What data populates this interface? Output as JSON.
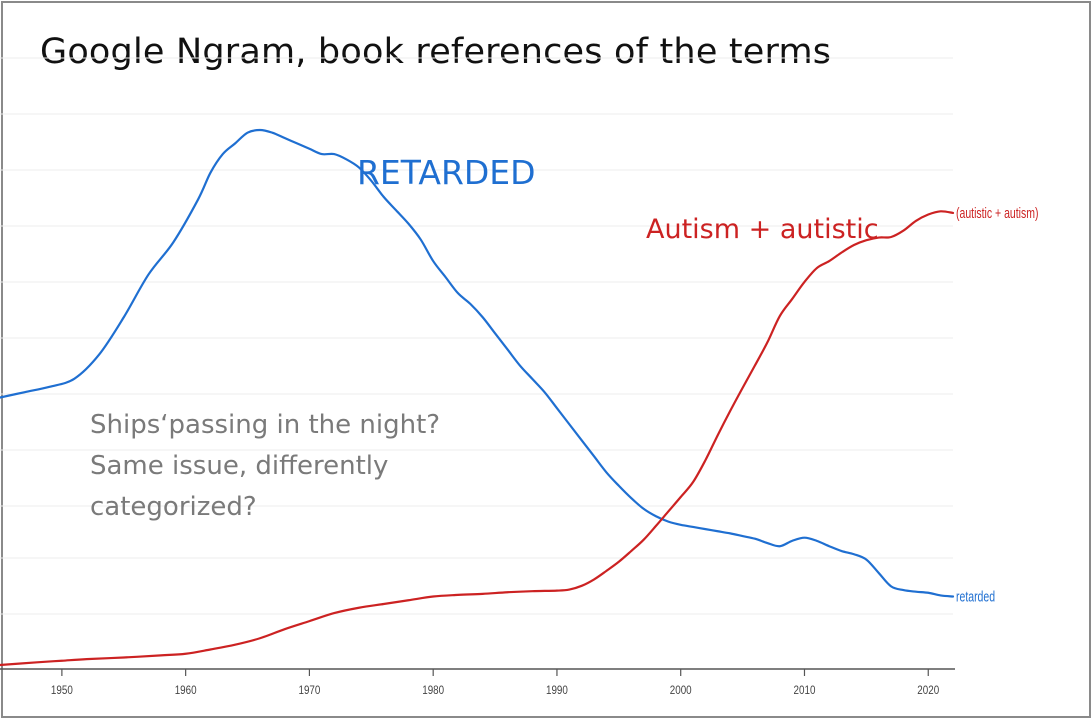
{
  "title": "Google Ngram, book references of the terms",
  "annotations": {
    "retarded_big": "RETARDED",
    "autism_big": "Autism + autistic",
    "question_lines": [
      "Ships‘passing in the night?",
      "Same issue, differently",
      "categorized?"
    ]
  },
  "colors": {
    "retarded": "#1f6fd1",
    "autism": "#cc2222",
    "grid": "#ececec",
    "axis": "#555555",
    "question_text": "#7a7a7a"
  },
  "chart_data": {
    "type": "line",
    "xlim": [
      1945,
      2022
    ],
    "ylim": [
      0,
      1
    ],
    "x_ticks": [
      1950,
      1960,
      1970,
      1980,
      1990,
      2000,
      2010,
      2020
    ],
    "y_tick_labels": [],
    "grid": true,
    "series": [
      {
        "name": "retarded",
        "end_label": "retarded",
        "color": "#1f6fd1",
        "points": [
          [
            1945,
            0.5
          ],
          [
            1947,
            0.51
          ],
          [
            1949,
            0.52
          ],
          [
            1951,
            0.535
          ],
          [
            1953,
            0.58
          ],
          [
            1955,
            0.65
          ],
          [
            1957,
            0.73
          ],
          [
            1959,
            0.79
          ],
          [
            1961,
            0.87
          ],
          [
            1962,
            0.92
          ],
          [
            1963,
            0.955
          ],
          [
            1964,
            0.975
          ],
          [
            1965,
            0.995
          ],
          [
            1966,
            1.0
          ],
          [
            1967,
            0.995
          ],
          [
            1968,
            0.985
          ],
          [
            1969,
            0.975
          ],
          [
            1970,
            0.965
          ],
          [
            1971,
            0.955
          ],
          [
            1972,
            0.955
          ],
          [
            1973,
            0.945
          ],
          [
            1974,
            0.93
          ],
          [
            1975,
            0.905
          ],
          [
            1976,
            0.875
          ],
          [
            1977,
            0.85
          ],
          [
            1978,
            0.825
          ],
          [
            1979,
            0.795
          ],
          [
            1980,
            0.755
          ],
          [
            1981,
            0.725
          ],
          [
            1982,
            0.695
          ],
          [
            1983,
            0.675
          ],
          [
            1984,
            0.65
          ],
          [
            1985,
            0.62
          ],
          [
            1986,
            0.59
          ],
          [
            1987,
            0.56
          ],
          [
            1988,
            0.535
          ],
          [
            1989,
            0.51
          ],
          [
            1990,
            0.48
          ],
          [
            1991,
            0.45
          ],
          [
            1992,
            0.42
          ],
          [
            1993,
            0.39
          ],
          [
            1994,
            0.36
          ],
          [
            1995,
            0.335
          ],
          [
            1996,
            0.312
          ],
          [
            1997,
            0.292
          ],
          [
            1998,
            0.278
          ],
          [
            1999,
            0.268
          ],
          [
            2000,
            0.262
          ],
          [
            2001,
            0.258
          ],
          [
            2002,
            0.254
          ],
          [
            2003,
            0.25
          ],
          [
            2004,
            0.246
          ],
          [
            2005,
            0.241
          ],
          [
            2006,
            0.236
          ],
          [
            2007,
            0.228
          ],
          [
            2008,
            0.222
          ],
          [
            2009,
            0.232
          ],
          [
            2010,
            0.238
          ],
          [
            2011,
            0.232
          ],
          [
            2012,
            0.222
          ],
          [
            2013,
            0.213
          ],
          [
            2014,
            0.207
          ],
          [
            2015,
            0.197
          ],
          [
            2016,
            0.172
          ],
          [
            2017,
            0.147
          ],
          [
            2018,
            0.14
          ],
          [
            2019,
            0.137
          ],
          [
            2020,
            0.135
          ],
          [
            2021,
            0.13
          ],
          [
            2022,
            0.128
          ]
        ]
      },
      {
        "name": "(autistic + autism)",
        "end_label": "(autistic + autism)",
        "color": "#cc2222",
        "points": [
          [
            1945,
            0.0
          ],
          [
            1948,
            0.005
          ],
          [
            1950,
            0.008
          ],
          [
            1952,
            0.011
          ],
          [
            1955,
            0.014
          ],
          [
            1958,
            0.018
          ],
          [
            1960,
            0.021
          ],
          [
            1962,
            0.029
          ],
          [
            1964,
            0.038
          ],
          [
            1966,
            0.05
          ],
          [
            1968,
            0.067
          ],
          [
            1970,
            0.082
          ],
          [
            1972,
            0.097
          ],
          [
            1974,
            0.107
          ],
          [
            1976,
            0.114
          ],
          [
            1978,
            0.121
          ],
          [
            1980,
            0.128
          ],
          [
            1982,
            0.131
          ],
          [
            1984,
            0.133
          ],
          [
            1986,
            0.136
          ],
          [
            1988,
            0.138
          ],
          [
            1990,
            0.139
          ],
          [
            1991,
            0.141
          ],
          [
            1992,
            0.148
          ],
          [
            1993,
            0.16
          ],
          [
            1994,
            0.176
          ],
          [
            1995,
            0.193
          ],
          [
            1996,
            0.213
          ],
          [
            1997,
            0.234
          ],
          [
            1998,
            0.26
          ],
          [
            1999,
            0.287
          ],
          [
            2000,
            0.314
          ],
          [
            2001,
            0.342
          ],
          [
            2002,
            0.383
          ],
          [
            2003,
            0.43
          ],
          [
            2004,
            0.475
          ],
          [
            2005,
            0.518
          ],
          [
            2006,
            0.56
          ],
          [
            2007,
            0.603
          ],
          [
            2008,
            0.652
          ],
          [
            2009,
            0.684
          ],
          [
            2010,
            0.716
          ],
          [
            2011,
            0.742
          ],
          [
            2012,
            0.755
          ],
          [
            2013,
            0.771
          ],
          [
            2014,
            0.785
          ],
          [
            2015,
            0.794
          ],
          [
            2016,
            0.799
          ],
          [
            2017,
            0.8
          ],
          [
            2018,
            0.812
          ],
          [
            2019,
            0.83
          ],
          [
            2020,
            0.842
          ],
          [
            2021,
            0.848
          ],
          [
            2022,
            0.845
          ]
        ]
      }
    ]
  }
}
